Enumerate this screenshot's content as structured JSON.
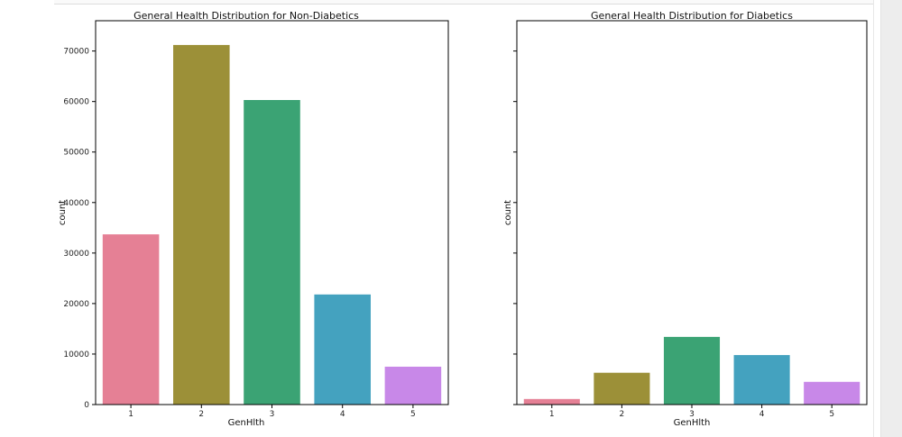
{
  "chart_data": [
    {
      "type": "bar",
      "title": "General Health Distribution for Non-Diabetics",
      "xlabel": "GenHlth",
      "ylabel": "count",
      "categories": [
        "1",
        "2",
        "3",
        "4",
        "5"
      ],
      "values": [
        33700,
        71200,
        60300,
        21800,
        7500
      ],
      "ylim": [
        0,
        76000
      ],
      "yticks": [
        "0",
        "10000",
        "20000",
        "30000",
        "40000",
        "50000",
        "60000",
        "70000"
      ],
      "colors": [
        "#e58095",
        "#9c9038",
        "#3ba374",
        "#44a2bf",
        "#c888e8"
      ],
      "grid": false
    },
    {
      "type": "bar",
      "title": "General Health Distribution for Diabetics",
      "xlabel": "GenHlth",
      "ylabel": "count",
      "categories": [
        "1",
        "2",
        "3",
        "4",
        "5"
      ],
      "values": [
        1100,
        6300,
        13400,
        9800,
        4500
      ],
      "ylim": [
        0,
        76000
      ],
      "shared_y": true,
      "colors": [
        "#e58095",
        "#9c9038",
        "#3ba374",
        "#44a2bf",
        "#c888e8"
      ],
      "grid": false
    }
  ]
}
